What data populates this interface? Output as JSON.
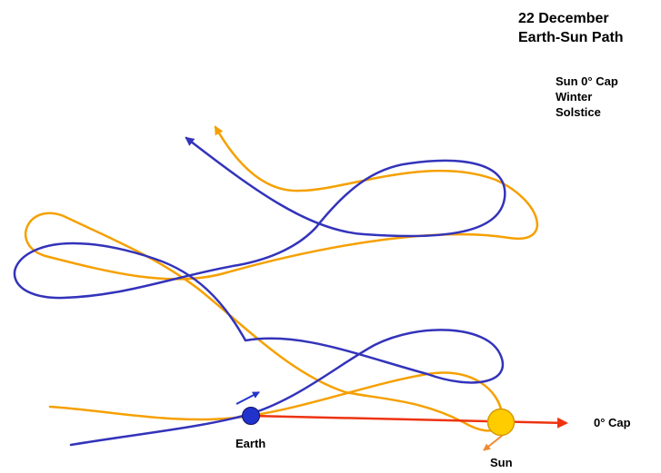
{
  "title": {
    "line1": "22 December",
    "line2": "Earth-Sun Path"
  },
  "note": {
    "line1": "Sun  0° Cap",
    "line2": "Winter",
    "line3": "Solstice"
  },
  "labels": {
    "earth": "Earth",
    "sun": "Sun",
    "cap": "0° Cap"
  },
  "colors": {
    "earth_path": "#3333bb",
    "sun_path": "#f5a000",
    "cap_line": "#ee3311",
    "earth_body": "#2233cc",
    "sun_body": "#ffcc00",
    "sun_body_outline": "#d69a00",
    "sun_motion_arrow": "#f08a30"
  },
  "elements": {
    "earth_path": "earth-path",
    "sun_path": "sun-path",
    "earth_body": "earth-body",
    "sun_body": "sun-body",
    "cap_line": "earth-sun-line",
    "earth_motion": "earth-motion-arrow",
    "sun_motion": "sun-motion-arrow"
  }
}
